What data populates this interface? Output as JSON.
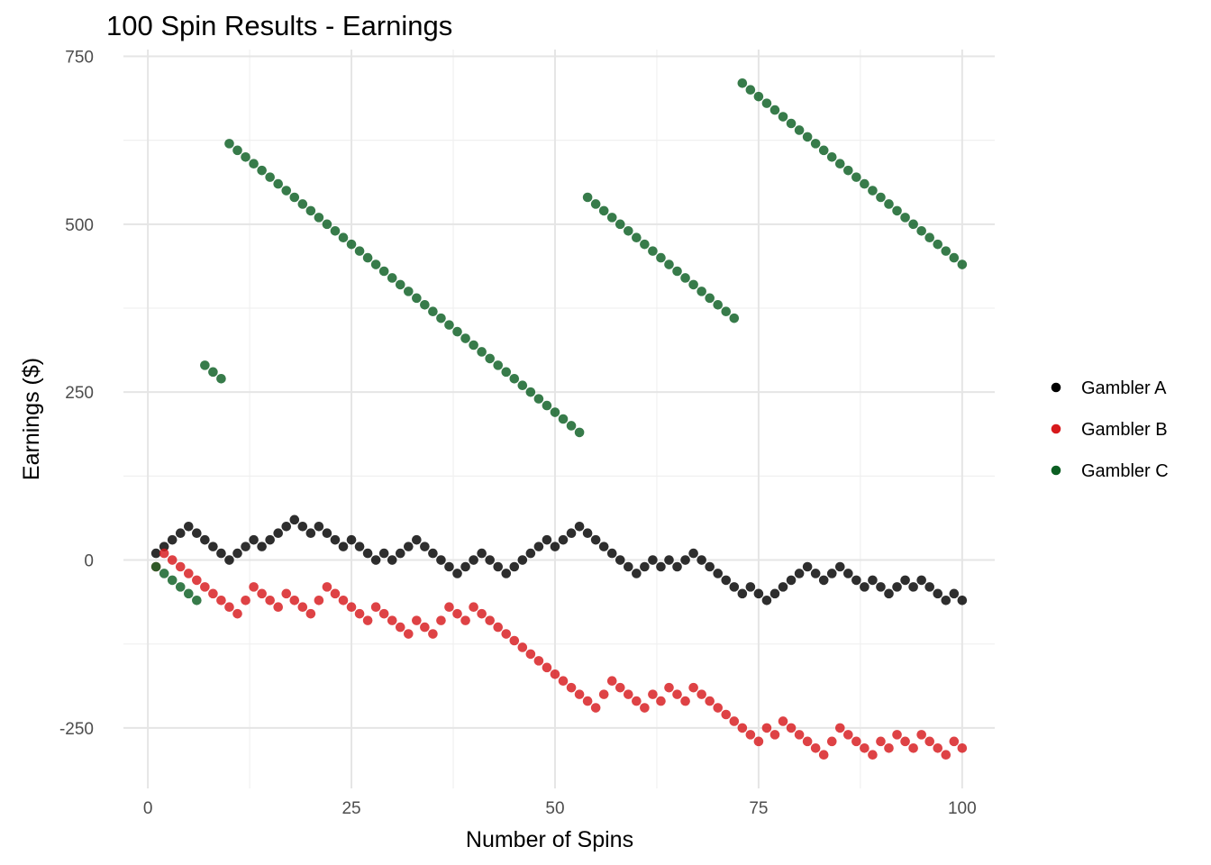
{
  "chart_data": {
    "type": "scatter",
    "title": "100 Spin Results - Earnings",
    "xlabel": "Number of Spins",
    "ylabel": "Earnings ($)",
    "xlim": [
      -3,
      104
    ],
    "ylim": [
      -340,
      760
    ],
    "xticks": [
      0,
      25,
      50,
      75,
      100
    ],
    "yticks": [
      -250,
      0,
      250,
      500,
      750
    ],
    "grid": true,
    "legend_position": "right",
    "series": [
      {
        "name": "Gambler A",
        "color": "#000000",
        "x": [
          1,
          2,
          3,
          4,
          5,
          6,
          7,
          8,
          9,
          10,
          11,
          12,
          13,
          14,
          15,
          16,
          17,
          18,
          19,
          20,
          21,
          22,
          23,
          24,
          25,
          26,
          27,
          28,
          29,
          30,
          31,
          32,
          33,
          34,
          35,
          36,
          37,
          38,
          39,
          40,
          41,
          42,
          43,
          44,
          45,
          46,
          47,
          48,
          49,
          50,
          51,
          52,
          53,
          54,
          55,
          56,
          57,
          58,
          59,
          60,
          61,
          62,
          63,
          64,
          65,
          66,
          67,
          68,
          69,
          70,
          71,
          72,
          73,
          74,
          75,
          76,
          77,
          78,
          79,
          80,
          81,
          82,
          83,
          84,
          85,
          86,
          87,
          88,
          89,
          90,
          91,
          92,
          93,
          94,
          95,
          96,
          97,
          98,
          99,
          100
        ],
        "y": [
          10,
          20,
          30,
          40,
          50,
          40,
          30,
          20,
          10,
          0,
          10,
          20,
          30,
          20,
          30,
          40,
          50,
          60,
          50,
          40,
          50,
          40,
          30,
          20,
          30,
          20,
          10,
          0,
          10,
          0,
          10,
          20,
          30,
          20,
          10,
          0,
          -10,
          -20,
          -10,
          0,
          10,
          0,
          -10,
          -20,
          -10,
          0,
          10,
          20,
          30,
          20,
          30,
          40,
          50,
          40,
          30,
          20,
          10,
          0,
          -10,
          -20,
          -10,
          0,
          -10,
          0,
          -10,
          0,
          10,
          0,
          -10,
          -20,
          -30,
          -40,
          -50,
          -40,
          -50,
          -60,
          -50,
          -40,
          -30,
          -20,
          -10,
          -20,
          -30,
          -20,
          -10,
          -20,
          -30,
          -40,
          -30,
          -40,
          -50,
          -40,
          -30,
          -40,
          -30,
          -40,
          -50,
          -60,
          -50,
          -60
        ]
      },
      {
        "name": "Gambler B",
        "color": "#d7191c",
        "x": [
          1,
          2,
          3,
          4,
          5,
          6,
          7,
          8,
          9,
          10,
          11,
          12,
          13,
          14,
          15,
          16,
          17,
          18,
          19,
          20,
          21,
          22,
          23,
          24,
          25,
          26,
          27,
          28,
          29,
          30,
          31,
          32,
          33,
          34,
          35,
          36,
          37,
          38,
          39,
          40,
          41,
          42,
          43,
          44,
          45,
          46,
          47,
          48,
          49,
          50,
          51,
          52,
          53,
          54,
          55,
          56,
          57,
          58,
          59,
          60,
          61,
          62,
          63,
          64,
          65,
          66,
          67,
          68,
          69,
          70,
          71,
          72,
          73,
          74,
          75,
          76,
          77,
          78,
          79,
          80,
          81,
          82,
          83,
          84,
          85,
          86,
          87,
          88,
          89,
          90,
          91,
          92,
          93,
          94,
          95,
          96,
          97,
          98,
          99,
          100
        ],
        "y": [
          -10,
          10,
          0,
          -10,
          -20,
          -30,
          -40,
          -50,
          -60,
          -70,
          -80,
          -60,
          -40,
          -50,
          -60,
          -70,
          -50,
          -60,
          -70,
          -80,
          -60,
          -40,
          -50,
          -60,
          -70,
          -80,
          -90,
          -70,
          -80,
          -90,
          -100,
          -110,
          -90,
          -100,
          -110,
          -90,
          -70,
          -80,
          -90,
          -70,
          -80,
          -90,
          -100,
          -110,
          -120,
          -130,
          -140,
          -150,
          -160,
          -170,
          -180,
          -190,
          -200,
          -210,
          -220,
          -200,
          -180,
          -190,
          -200,
          -210,
          -220,
          -200,
          -210,
          -190,
          -200,
          -210,
          -190,
          -200,
          -210,
          -220,
          -230,
          -240,
          -250,
          -260,
          -270,
          -250,
          -260,
          -240,
          -250,
          -260,
          -270,
          -280,
          -290,
          -270,
          -250,
          -260,
          -270,
          -280,
          -290,
          -270,
          -280,
          -260,
          -270,
          -280,
          -260,
          -270,
          -280,
          -290,
          -270,
          -280
        ]
      },
      {
        "name": "Gambler C",
        "color": "#0b5e22",
        "x": [
          1,
          2,
          3,
          4,
          5,
          6,
          7,
          8,
          9,
          10,
          11,
          12,
          13,
          14,
          15,
          16,
          17,
          18,
          19,
          20,
          21,
          22,
          23,
          24,
          25,
          26,
          27,
          28,
          29,
          30,
          31,
          32,
          33,
          34,
          35,
          36,
          37,
          38,
          39,
          40,
          41,
          42,
          43,
          44,
          45,
          46,
          47,
          48,
          49,
          50,
          51,
          52,
          53,
          54,
          55,
          56,
          57,
          58,
          59,
          60,
          61,
          62,
          63,
          64,
          65,
          66,
          67,
          68,
          69,
          70,
          71,
          72,
          73,
          74,
          75,
          76,
          77,
          78,
          79,
          80,
          81,
          82,
          83,
          84,
          85,
          86,
          87,
          88,
          89,
          90,
          91,
          92,
          93,
          94,
          95,
          96,
          97,
          98,
          99,
          100
        ],
        "y": [
          -10,
          -20,
          -30,
          -40,
          -50,
          -60,
          290,
          280,
          270,
          620,
          610,
          600,
          590,
          580,
          570,
          560,
          550,
          540,
          530,
          520,
          510,
          500,
          490,
          480,
          470,
          460,
          450,
          440,
          430,
          420,
          410,
          400,
          390,
          380,
          370,
          360,
          350,
          340,
          330,
          320,
          310,
          300,
          290,
          280,
          270,
          260,
          250,
          240,
          230,
          220,
          210,
          200,
          190,
          540,
          530,
          520,
          510,
          500,
          490,
          480,
          470,
          460,
          450,
          440,
          430,
          420,
          410,
          400,
          390,
          380,
          370,
          360,
          710,
          700,
          690,
          680,
          670,
          660,
          650,
          640,
          630,
          620,
          610,
          600,
          590,
          580,
          570,
          560,
          550,
          540,
          530,
          520,
          510,
          500,
          490,
          480,
          470,
          460,
          450,
          440
        ]
      }
    ]
  }
}
